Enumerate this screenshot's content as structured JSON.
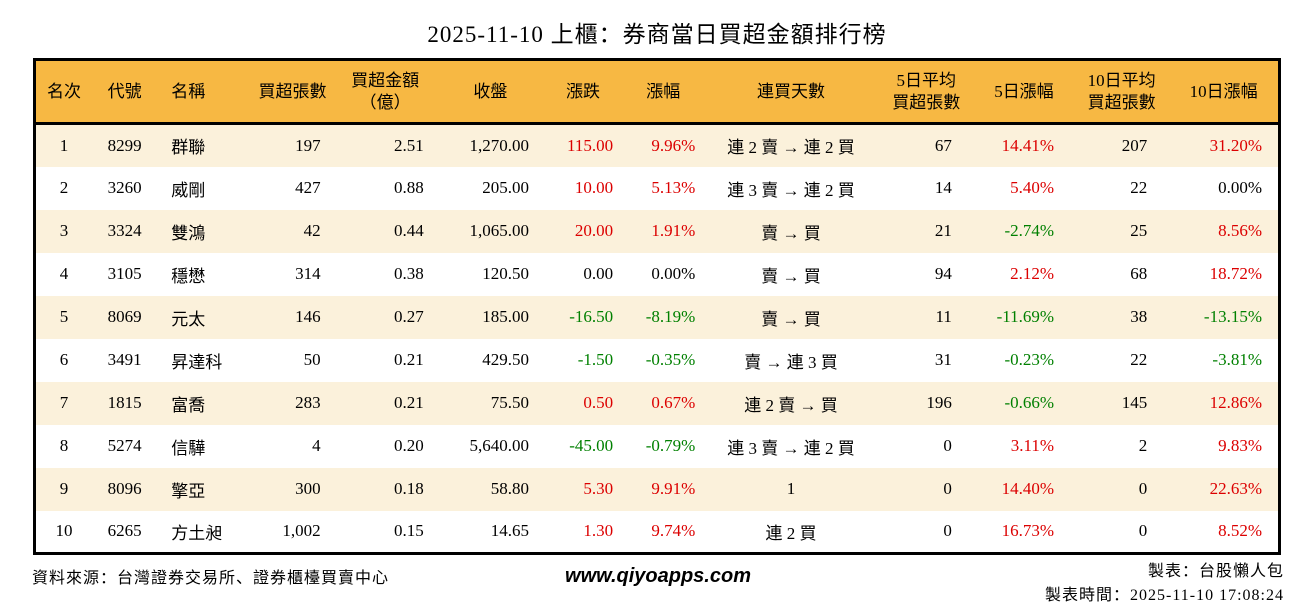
{
  "palette": {
    "header_bg": "#F7B843",
    "row_stripe_bg": "#FBF1DB",
    "row_plain_bg": "#FFFFFF",
    "up_text": "#DC0000",
    "down_text": "#008000",
    "neutral_text": "#000000",
    "border": "#000000"
  },
  "chart_data": {
    "type": "table",
    "title": "2025-11-10 上櫃：券商當日買超金額排行榜",
    "columns": [
      {
        "key": "rank",
        "label": "名次"
      },
      {
        "key": "code",
        "label": "代號"
      },
      {
        "key": "name",
        "label": "名稱"
      },
      {
        "key": "volume",
        "label": "買超張數"
      },
      {
        "key": "amount",
        "label": "買超金額\n（億）"
      },
      {
        "key": "close",
        "label": "收盤"
      },
      {
        "key": "change",
        "label": "漲跌"
      },
      {
        "key": "change_pct",
        "label": "漲幅"
      },
      {
        "key": "streak",
        "label": "連買天數"
      },
      {
        "key": "avg5",
        "label": "5日平均\n買超張數"
      },
      {
        "key": "pct5",
        "label": "5日漲幅"
      },
      {
        "key": "avg10",
        "label": "10日平均\n買超張數"
      },
      {
        "key": "pct10",
        "label": "10日漲幅"
      }
    ],
    "rows": [
      {
        "rank": "1",
        "code": "8299",
        "name": "群聯",
        "volume": "197",
        "amount": "2.51",
        "close": "1,270.00",
        "change": "115.00",
        "change_pct": "9.96%",
        "streak": "連 2 賣 → 連 2 買",
        "avg5": "67",
        "pct5": "14.41%",
        "avg10": "207",
        "pct10": "31.20%",
        "trends": {
          "change": "up",
          "change_pct": "up",
          "pct5": "up",
          "pct10": "up"
        }
      },
      {
        "rank": "2",
        "code": "3260",
        "name": "威剛",
        "volume": "427",
        "amount": "0.88",
        "close": "205.00",
        "change": "10.00",
        "change_pct": "5.13%",
        "streak": "連 3 賣 → 連 2 買",
        "avg5": "14",
        "pct5": "5.40%",
        "avg10": "22",
        "pct10": "0.00%",
        "trends": {
          "change": "up",
          "change_pct": "up",
          "pct5": "up",
          "pct10": "flat"
        }
      },
      {
        "rank": "3",
        "code": "3324",
        "name": "雙鴻",
        "volume": "42",
        "amount": "0.44",
        "close": "1,065.00",
        "change": "20.00",
        "change_pct": "1.91%",
        "streak": "賣 → 買",
        "avg5": "21",
        "pct5": "-2.74%",
        "avg10": "25",
        "pct10": "8.56%",
        "trends": {
          "change": "up",
          "change_pct": "up",
          "pct5": "down",
          "pct10": "up"
        }
      },
      {
        "rank": "4",
        "code": "3105",
        "name": "穩懋",
        "volume": "314",
        "amount": "0.38",
        "close": "120.50",
        "change": "0.00",
        "change_pct": "0.00%",
        "streak": "賣 → 買",
        "avg5": "94",
        "pct5": "2.12%",
        "avg10": "68",
        "pct10": "18.72%",
        "trends": {
          "change": "flat",
          "change_pct": "flat",
          "pct5": "up",
          "pct10": "up"
        }
      },
      {
        "rank": "5",
        "code": "8069",
        "name": "元太",
        "volume": "146",
        "amount": "0.27",
        "close": "185.00",
        "change": "-16.50",
        "change_pct": "-8.19%",
        "streak": "賣 → 買",
        "avg5": "11",
        "pct5": "-11.69%",
        "avg10": "38",
        "pct10": "-13.15%",
        "trends": {
          "change": "down",
          "change_pct": "down",
          "pct5": "down",
          "pct10": "down"
        }
      },
      {
        "rank": "6",
        "code": "3491",
        "name": "昇達科",
        "volume": "50",
        "amount": "0.21",
        "close": "429.50",
        "change": "-1.50",
        "change_pct": "-0.35%",
        "streak": "賣 → 連 3 買",
        "avg5": "31",
        "pct5": "-0.23%",
        "avg10": "22",
        "pct10": "-3.81%",
        "trends": {
          "change": "down",
          "change_pct": "down",
          "pct5": "down",
          "pct10": "down"
        }
      },
      {
        "rank": "7",
        "code": "1815",
        "name": "富喬",
        "volume": "283",
        "amount": "0.21",
        "close": "75.50",
        "change": "0.50",
        "change_pct": "0.67%",
        "streak": "連 2 賣 → 買",
        "avg5": "196",
        "pct5": "-0.66%",
        "avg10": "145",
        "pct10": "12.86%",
        "trends": {
          "change": "up",
          "change_pct": "up",
          "pct5": "down",
          "pct10": "up"
        }
      },
      {
        "rank": "8",
        "code": "5274",
        "name": "信驊",
        "volume": "4",
        "amount": "0.20",
        "close": "5,640.00",
        "change": "-45.00",
        "change_pct": "-0.79%",
        "streak": "連 3 賣 → 連 2 買",
        "avg5": "0",
        "pct5": "3.11%",
        "avg10": "2",
        "pct10": "9.83%",
        "trends": {
          "change": "down",
          "change_pct": "down",
          "pct5": "up",
          "pct10": "up"
        }
      },
      {
        "rank": "9",
        "code": "8096",
        "name": "擎亞",
        "volume": "300",
        "amount": "0.18",
        "close": "58.80",
        "change": "5.30",
        "change_pct": "9.91%",
        "streak": "1",
        "avg5": "0",
        "pct5": "14.40%",
        "avg10": "0",
        "pct10": "22.63%",
        "trends": {
          "change": "up",
          "change_pct": "up",
          "pct5": "up",
          "pct10": "up"
        }
      },
      {
        "rank": "10",
        "code": "6265",
        "name": "方土昶",
        "volume": "1,002",
        "amount": "0.15",
        "close": "14.65",
        "change": "1.30",
        "change_pct": "9.74%",
        "streak": "連 2 買",
        "avg5": "0",
        "pct5": "16.73%",
        "avg10": "0",
        "pct10": "8.52%",
        "trends": {
          "change": "up",
          "change_pct": "up",
          "pct5": "up",
          "pct10": "up"
        }
      }
    ]
  },
  "footer": {
    "source": "資料來源：台灣證券交易所、證券櫃檯買賣中心",
    "website": "www.qiyoapps.com",
    "author": "製表：台股懶人包",
    "timestamp": "製表時間：2025-11-10 17:08:24"
  }
}
